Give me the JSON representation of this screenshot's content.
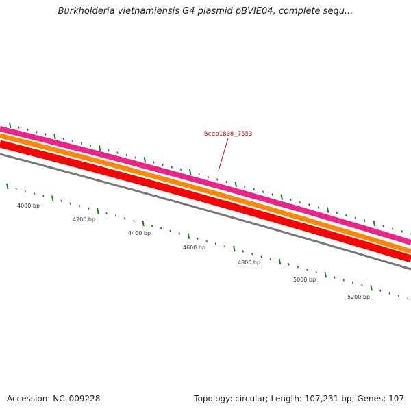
{
  "title": "Burkholderia vietnamiensis G4 plasmid pBVIE04, complete sequ...",
  "gene_label": "Bcep1808_7553",
  "ruler_labels": [
    "4000 bp",
    "4200 bp",
    "4400 bp",
    "4600 bp",
    "4800 bp",
    "5000 bp",
    "5200 bp"
  ],
  "footer": {
    "accession": "Accession: NC_009228",
    "info": "Topology: circular; Length: 107,231 bp; Genes: 107"
  },
  "colors": {
    "track_magenta": "#ee2288",
    "track_orange": "#ff8800",
    "track_red": "#ff0000",
    "track_gray": "#777777",
    "tick_green": "#118811",
    "gene_label": "#dd0000"
  }
}
